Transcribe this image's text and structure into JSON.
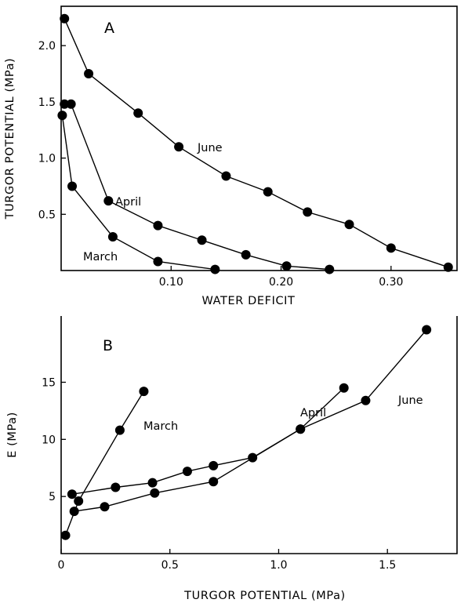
{
  "chart_data": [
    {
      "type": "line",
      "panel_label": "A",
      "xlabel": "WATER DEFICIT",
      "ylabel": "TURGOR POTENTIAL (MPa)",
      "xlim": [
        0,
        0.36
      ],
      "ylim": [
        0,
        2.35
      ],
      "xticks": [
        0.1,
        0.2,
        0.3
      ],
      "xtick_labels": [
        "0.10",
        "0.20",
        "0.30"
      ],
      "yticks": [
        0.5,
        1.0,
        1.5,
        2.0
      ],
      "ytick_labels": [
        "0.5",
        "1.0",
        "1.5",
        "2.0"
      ],
      "series": [
        {
          "name": "June",
          "x": [
            0.003,
            0.025,
            0.07,
            0.107,
            0.15,
            0.188,
            0.224,
            0.262,
            0.3,
            0.352
          ],
          "y": [
            2.24,
            1.75,
            1.4,
            1.1,
            0.84,
            0.7,
            0.52,
            0.41,
            0.2,
            0.03
          ]
        },
        {
          "name": "April",
          "x": [
            0.003,
            0.009,
            0.043,
            0.088,
            0.128,
            0.168,
            0.205,
            0.244
          ],
          "y": [
            1.48,
            1.48,
            0.62,
            0.4,
            0.27,
            0.14,
            0.04,
            0.01
          ]
        },
        {
          "name": "March",
          "x": [
            0.001,
            0.01,
            0.047,
            0.088,
            0.14
          ],
          "y": [
            1.38,
            0.75,
            0.3,
            0.08,
            0.01
          ]
        }
      ]
    },
    {
      "type": "line",
      "panel_label": "B",
      "xlabel": "TURGOR POTENTIAL (MPa)",
      "ylabel": "E (MPa)",
      "xlim": [
        0,
        1.82
      ],
      "ylim": [
        0,
        20.8
      ],
      "xticks": [
        0,
        0.5,
        1.0,
        1.5
      ],
      "xtick_labels": [
        "0",
        "0.5",
        "1.0",
        "1.5"
      ],
      "yticks": [
        5,
        10,
        15
      ],
      "ytick_labels": [
        "5",
        "10",
        "15"
      ],
      "series": [
        {
          "name": "March",
          "x": [
            0.02,
            0.08,
            0.27,
            0.38
          ],
          "y": [
            1.6,
            4.6,
            10.8,
            14.2
          ]
        },
        {
          "name": "April",
          "x": [
            0.05,
            0.25,
            0.42,
            0.58,
            0.7,
            0.88,
            1.1,
            1.3
          ],
          "y": [
            5.2,
            5.8,
            6.2,
            7.2,
            7.7,
            8.4,
            10.9,
            14.5
          ]
        },
        {
          "name": "June",
          "x": [
            0.06,
            0.2,
            0.43,
            0.7,
            1.1,
            1.4,
            1.68
          ],
          "y": [
            3.7,
            4.1,
            5.3,
            6.3,
            10.9,
            13.4,
            19.6
          ]
        }
      ]
    }
  ]
}
